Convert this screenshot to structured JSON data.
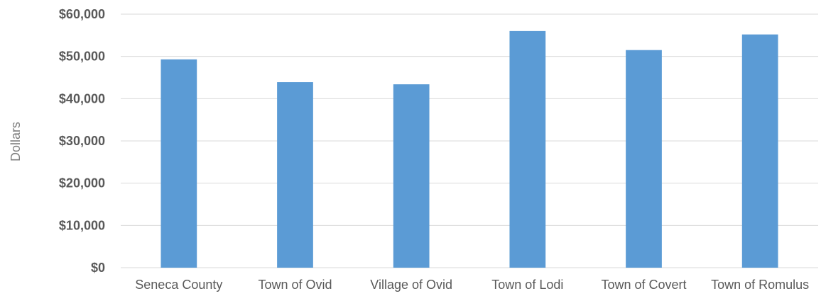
{
  "chart_data": {
    "type": "bar",
    "categories": [
      "Seneca County",
      "Town of Ovid",
      "Village of Ovid",
      "Town of Lodi",
      "Town of Covert",
      "Town of Romulus"
    ],
    "values": [
      49300,
      43900,
      43400,
      56000,
      51500,
      55200
    ],
    "ylabel": "Dollars",
    "ylim": [
      0,
      60000
    ],
    "yticks": [
      0,
      10000,
      20000,
      30000,
      40000,
      50000,
      60000
    ],
    "ytick_labels": [
      "$0",
      "$10,000",
      "$20,000",
      "$30,000",
      "$40,000",
      "$50,000",
      "$60,000"
    ],
    "grid": true,
    "legend": "none",
    "bar_color": "#5B9BD5"
  }
}
